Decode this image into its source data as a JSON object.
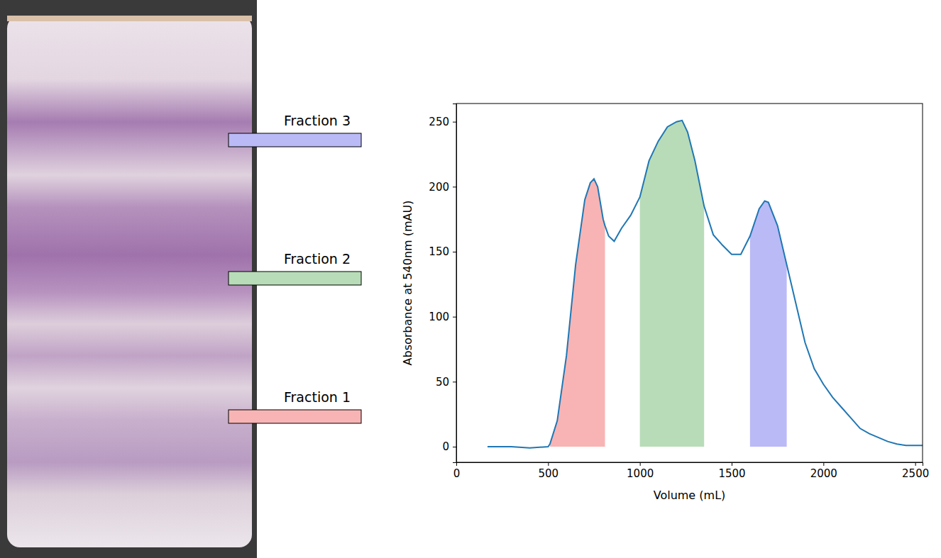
{
  "chart_data": {
    "type": "line",
    "x_label": "Volume (mL)",
    "y_label": "Absorbance at 540nm (mAU)",
    "xlim": [
      0,
      2540
    ],
    "ylim": [
      -12,
      264
    ],
    "xticks": [
      0,
      500,
      1000,
      1500,
      2000,
      2500
    ],
    "yticks": [
      0,
      50,
      100,
      150,
      200,
      250
    ],
    "grid": false,
    "x": [
      170,
      300,
      400,
      500,
      510,
      550,
      600,
      650,
      700,
      730,
      750,
      770,
      800,
      810,
      830,
      860,
      900,
      950,
      1000,
      1050,
      1100,
      1150,
      1200,
      1230,
      1260,
      1300,
      1350,
      1400,
      1450,
      1500,
      1550,
      1600,
      1650,
      1680,
      1700,
      1750,
      1800,
      1850,
      1900,
      1950,
      2000,
      2050,
      2100,
      2150,
      2200,
      2250,
      2300,
      2350,
      2400,
      2450,
      2500,
      2540
    ],
    "series": [
      {
        "color": "#1f77b4",
        "values": [
          0,
          0,
          -1,
          0,
          2,
          20,
          70,
          140,
          190,
          203,
          206,
          200,
          175,
          170,
          162,
          158,
          168,
          178,
          192,
          220,
          235,
          246,
          250,
          251,
          242,
          220,
          185,
          163,
          155,
          148,
          148,
          162,
          183,
          189,
          188,
          170,
          140,
          110,
          80,
          60,
          48,
          38,
          30,
          22,
          14,
          10,
          7,
          4,
          2,
          1,
          1,
          1
        ]
      }
    ],
    "fractions": [
      {
        "name": "Fraction 1",
        "color": "#f8b4b4",
        "x": [
          510,
          810
        ]
      },
      {
        "name": "Fraction 2",
        "color": "#b8dcb8",
        "x": [
          1000,
          1350
        ]
      },
      {
        "name": "Fraction 3",
        "color": "#babaf6",
        "x": [
          1600,
          1800
        ]
      }
    ]
  }
}
